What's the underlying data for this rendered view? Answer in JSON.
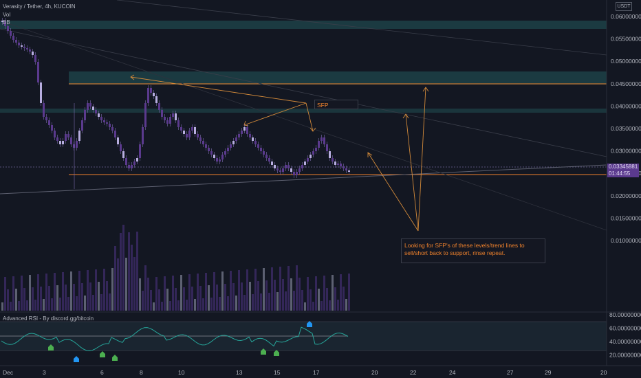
{
  "header": {
    "symbol_title": "Verasity / Tether, 4h, KUCOIN",
    "vol_label": "Vol",
    "bb_label": "BB"
  },
  "currency_button": "USDT",
  "price_axis": {
    "labels": [
      "0.06000000",
      "0.05500000",
      "0.05000000",
      "0.04500000",
      "0.04000000",
      "0.03500000",
      "0.03000000",
      "0.02500000",
      "0.02000000",
      "0.01500000",
      "0.01000000"
    ],
    "current_price": "0.03345881",
    "countdown": "01:44:55"
  },
  "rsi_axis": {
    "labels": [
      "80.00000000",
      "60.00000000",
      "40.00000000",
      "20.00000000"
    ]
  },
  "rsi_panel": {
    "title": "Advanced RSI - By discord.gg/bitcoin"
  },
  "time_axis": {
    "labels": [
      "Dec",
      "3",
      "6",
      "8",
      "10",
      "13",
      "15",
      "17",
      "20",
      "22",
      "24",
      "27",
      "29",
      "20"
    ]
  },
  "annotations": {
    "sfp_label": "SFP",
    "note_text": "Looking for SFP's of these levels/trend lines to sell/short back to support, rinse repeat."
  },
  "colors": {
    "background": "#131722",
    "candle": "#5b3a8e",
    "candle_light": "#9b8bd0",
    "zone": "#1f4a4f",
    "orange": "#f0822c",
    "rsi_line": "#26a69a"
  }
}
